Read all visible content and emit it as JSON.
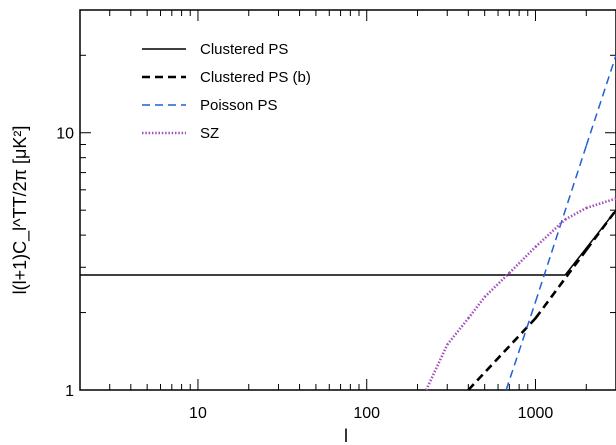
{
  "chart_data": {
    "type": "line",
    "title": "",
    "xlabel": "l",
    "ylabel": "l(l+1)C_l^TT/2π [μK²]",
    "xscale": "log",
    "yscale": "log",
    "xlim": [
      2,
      3000
    ],
    "ylim": [
      1,
      30
    ],
    "grid": false,
    "legend_position": "top-left",
    "x_tick_labels": [
      "10",
      "100",
      "1000"
    ],
    "y_tick_labels": [
      "1",
      "10"
    ],
    "legend": [
      {
        "name": "Clustered PS",
        "color": "#000000",
        "style": "solid"
      },
      {
        "name": "Clustered PS (b)",
        "color": "#000000",
        "style": "dashed"
      },
      {
        "name": "Poisson PS",
        "color": "#1f5fd6",
        "style": "dashed"
      },
      {
        "name": "SZ",
        "color": "#a150c0",
        "style": "dotted"
      }
    ],
    "series": [
      {
        "name": "Clustered PS",
        "color": "#000000",
        "style": "solid",
        "x": [
          2,
          1500,
          3000
        ],
        "y": [
          2.8,
          2.8,
          5.0
        ]
      },
      {
        "name": "Clustered PS (b)",
        "color": "#000000",
        "style": "dashed",
        "x": [
          400,
          1000,
          2000,
          3000
        ],
        "y": [
          1.0,
          1.9,
          3.5,
          5.0
        ]
      },
      {
        "name": "Poisson PS",
        "color": "#1f5fd6",
        "style": "dashed",
        "x": [
          670,
          1000,
          2000,
          3000
        ],
        "y": [
          1.0,
          2.2,
          8.9,
          20.0
        ]
      },
      {
        "name": "SZ",
        "color": "#a150c0",
        "style": "dotted",
        "x": [
          225,
          300,
          400,
          500,
          700,
          1000,
          1500,
          2000,
          3000
        ],
        "y": [
          1.0,
          1.5,
          1.9,
          2.3,
          2.85,
          3.6,
          4.6,
          5.1,
          5.55
        ]
      }
    ]
  }
}
